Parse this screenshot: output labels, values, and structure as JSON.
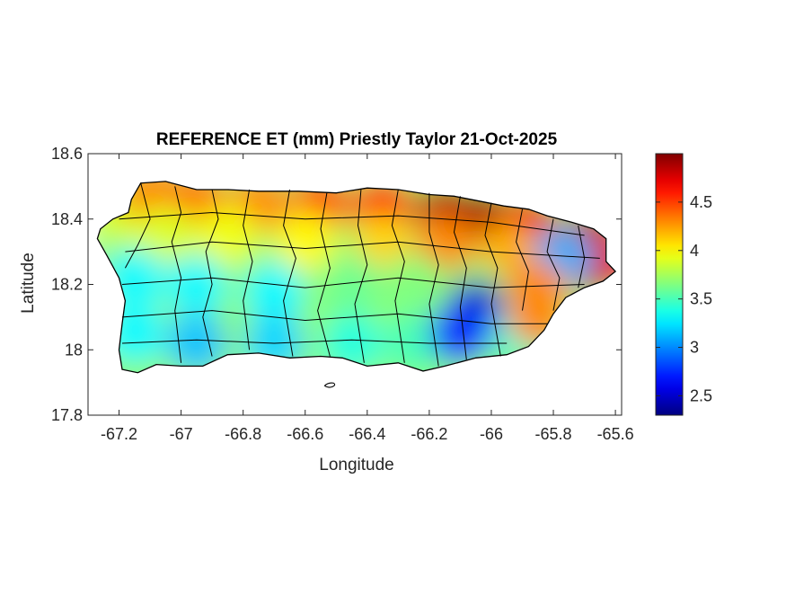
{
  "chart_data": {
    "type": "heatmap",
    "title": "REFERENCE ET (mm) Priestly Taylor 21-Oct-2025",
    "xlabel": "Longitude",
    "ylabel": "Latitude",
    "xlim": [
      -67.3,
      -65.58
    ],
    "ylim": [
      17.8,
      18.6
    ],
    "xticks": [
      "-67.2",
      "-67",
      "-66.8",
      "-66.6",
      "-66.4",
      "-66.2",
      "-66",
      "-65.8",
      "-65.6"
    ],
    "xtick_values": [
      -67.2,
      -67.0,
      -66.8,
      -66.6,
      -66.4,
      -66.2,
      -66.0,
      -65.8,
      -65.6
    ],
    "yticks": [
      "17.8",
      "18",
      "18.2",
      "18.4",
      "18.6"
    ],
    "ytick_values": [
      17.8,
      18.0,
      18.2,
      18.4,
      18.6
    ],
    "colorbar": {
      "colormap": "jet",
      "range": [
        2.3,
        5.0
      ],
      "ticks": [
        "2.5",
        "3",
        "3.5",
        "4",
        "4.5"
      ],
      "tick_values": [
        2.5,
        3.0,
        3.5,
        4.0,
        4.5
      ]
    },
    "regional_values": [
      {
        "lon": -67.18,
        "lat": 18.42,
        "value": 3.9
      },
      {
        "lon": -67.1,
        "lat": 18.48,
        "value": 4.3
      },
      {
        "lon": -66.95,
        "lat": 18.46,
        "value": 4.35
      },
      {
        "lon": -66.75,
        "lat": 18.45,
        "value": 4.3
      },
      {
        "lon": -66.55,
        "lat": 18.45,
        "value": 4.45
      },
      {
        "lon": -66.35,
        "lat": 18.44,
        "value": 4.55
      },
      {
        "lon": -66.15,
        "lat": 18.42,
        "value": 4.85
      },
      {
        "lon": -66.02,
        "lat": 18.4,
        "value": 4.9
      },
      {
        "lon": -65.88,
        "lat": 18.38,
        "value": 4.7
      },
      {
        "lon": -65.68,
        "lat": 18.34,
        "value": 4.8
      },
      {
        "lon": -65.65,
        "lat": 18.26,
        "value": 4.75
      },
      {
        "lon": -67.05,
        "lat": 18.35,
        "value": 3.9
      },
      {
        "lon": -66.85,
        "lat": 18.35,
        "value": 3.95
      },
      {
        "lon": -66.6,
        "lat": 18.33,
        "value": 4.0
      },
      {
        "lon": -66.35,
        "lat": 18.32,
        "value": 4.1
      },
      {
        "lon": -66.15,
        "lat": 18.32,
        "value": 4.3
      },
      {
        "lon": -65.95,
        "lat": 18.3,
        "value": 4.2
      },
      {
        "lon": -65.77,
        "lat": 18.28,
        "value": 3.1
      },
      {
        "lon": -67.15,
        "lat": 18.22,
        "value": 3.3
      },
      {
        "lon": -66.95,
        "lat": 18.2,
        "value": 3.3
      },
      {
        "lon": -66.7,
        "lat": 18.18,
        "value": 3.3
      },
      {
        "lon": -66.45,
        "lat": 18.2,
        "value": 3.6
      },
      {
        "lon": -66.25,
        "lat": 18.2,
        "value": 3.65
      },
      {
        "lon": -66.05,
        "lat": 18.18,
        "value": 3.7
      },
      {
        "lon": -65.85,
        "lat": 18.18,
        "value": 4.3
      },
      {
        "lon": -67.15,
        "lat": 18.05,
        "value": 3.3
      },
      {
        "lon": -66.95,
        "lat": 18.02,
        "value": 3.15
      },
      {
        "lon": -66.7,
        "lat": 18.02,
        "value": 3.2
      },
      {
        "lon": -66.45,
        "lat": 18.02,
        "value": 3.4
      },
      {
        "lon": -66.25,
        "lat": 18.02,
        "value": 3.5
      },
      {
        "lon": -66.05,
        "lat": 18.12,
        "value": 2.5
      },
      {
        "lon": -66.1,
        "lat": 18.05,
        "value": 2.75
      },
      {
        "lon": -65.9,
        "lat": 18.05,
        "value": 3.4
      },
      {
        "lon": -65.85,
        "lat": 18.1,
        "value": 4.3
      }
    ]
  }
}
